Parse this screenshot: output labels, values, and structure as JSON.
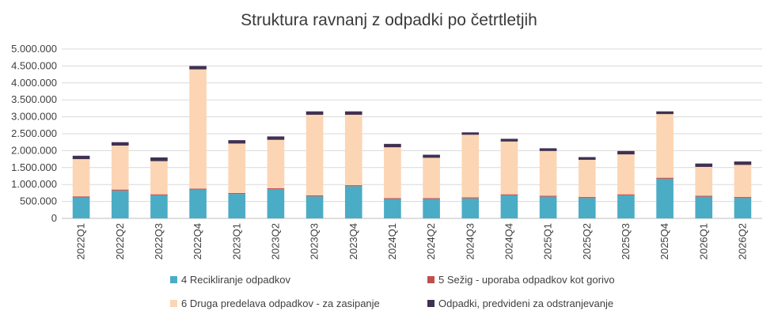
{
  "chart_data": {
    "type": "bar",
    "stacked": true,
    "title": "Struktura ravnanj z odpadki po četrtletjih",
    "xlabel": "",
    "ylabel": "",
    "ylim": [
      0,
      5000000
    ],
    "yticks": [
      0,
      500000,
      1000000,
      1500000,
      2000000,
      2500000,
      3000000,
      3500000,
      4000000,
      4500000,
      5000000
    ],
    "ytick_labels": [
      "0",
      "500.000",
      "1.000.000",
      "1.500.000",
      "2.000.000",
      "2.500.000",
      "3.000.000",
      "3.500.000",
      "4.000.000",
      "4.500.000",
      "5.000.000"
    ],
    "grid": true,
    "legend_position": "bottom",
    "categories": [
      "2022Q1",
      "2022Q2",
      "2022Q3",
      "2022Q4",
      "2023Q1",
      "2023Q2",
      "2023Q3",
      "2023Q4",
      "2024Q1",
      "2024Q2",
      "2024Q3",
      "2024Q4",
      "2025Q1",
      "2025Q2",
      "2025Q3",
      "2025Q4",
      "2026Q1",
      "2026Q2"
    ],
    "series": [
      {
        "name": "4 Recikliranje odpadkov",
        "color": "#4bacc6",
        "values": [
          620000,
          820000,
          680000,
          850000,
          720000,
          860000,
          650000,
          950000,
          570000,
          570000,
          590000,
          680000,
          640000,
          600000,
          680000,
          1170000,
          640000,
          600000
        ]
      },
      {
        "name": "5 Sežig - uporaba odpadkov kot gorivo",
        "color": "#c0504d",
        "values": [
          30000,
          30000,
          30000,
          30000,
          30000,
          30000,
          30000,
          30000,
          30000,
          30000,
          30000,
          30000,
          30000,
          30000,
          30000,
          30000,
          30000,
          30000
        ]
      },
      {
        "name": "6 Druga predelava odpadkov - za zasipanje",
        "color": "#fcd5b4",
        "values": [
          1100000,
          1300000,
          980000,
          3520000,
          1460000,
          1430000,
          2380000,
          2080000,
          1500000,
          1190000,
          1850000,
          1560000,
          1320000,
          1100000,
          1180000,
          1880000,
          850000,
          950000
        ]
      },
      {
        "name": "Odpadki, predvideni za odstranjevanje",
        "color": "#403151",
        "values": [
          100000,
          100000,
          110000,
          100000,
          100000,
          100000,
          100000,
          100000,
          100000,
          90000,
          70000,
          80000,
          80000,
          80000,
          100000,
          80000,
          100000,
          100000
        ]
      }
    ]
  }
}
